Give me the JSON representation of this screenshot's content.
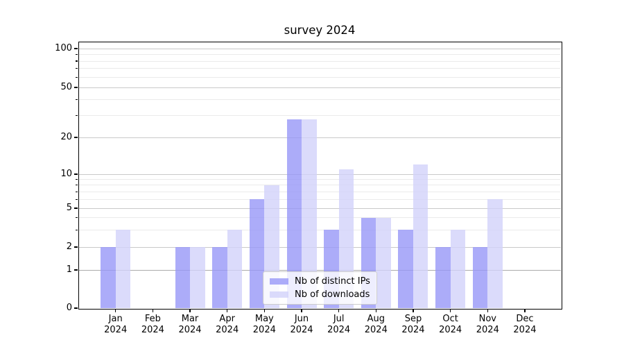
{
  "chart_data": {
    "type": "bar",
    "title": "survey 2024",
    "year": "2024",
    "categories": [
      "Jan",
      "Feb",
      "Mar",
      "Apr",
      "May",
      "Jun",
      "Jul",
      "Aug",
      "Sep",
      "Oct",
      "Nov",
      "Dec"
    ],
    "series": [
      {
        "name": "Nb of distinct IPs",
        "color": "#acacf8",
        "color_rgba": "rgba(151,151,248,0.8)",
        "values": [
          2,
          0,
          2,
          2,
          6,
          28,
          3,
          4,
          3,
          2,
          2,
          0
        ]
      },
      {
        "name": "Nb of downloads",
        "color": "#dbdbfa",
        "color_rgba": "rgba(210,210,250,0.8)",
        "values": [
          3,
          0,
          2,
          3,
          8,
          28,
          11,
          4,
          12,
          3,
          6,
          0
        ]
      }
    ],
    "yscale": "linear below 1, log above 1",
    "ylim": [
      0,
      113
    ],
    "yticks_major": [
      0,
      1,
      2,
      5,
      10,
      20,
      50,
      100
    ],
    "yticks_minor": [
      3,
      4,
      6,
      7,
      8,
      9,
      30,
      40,
      60,
      70,
      80,
      90
    ],
    "grid": true,
    "legend_position": "lower center"
  },
  "colors": {
    "bar_ips": "#acacf8",
    "bar_downloads": "#dbdbfa",
    "grid_major": "#c9c9c9",
    "grid_minor": "#eaeaea",
    "grid_unit_line": "#ababab",
    "axis": "#000000",
    "legend_border": "#cccccc"
  }
}
